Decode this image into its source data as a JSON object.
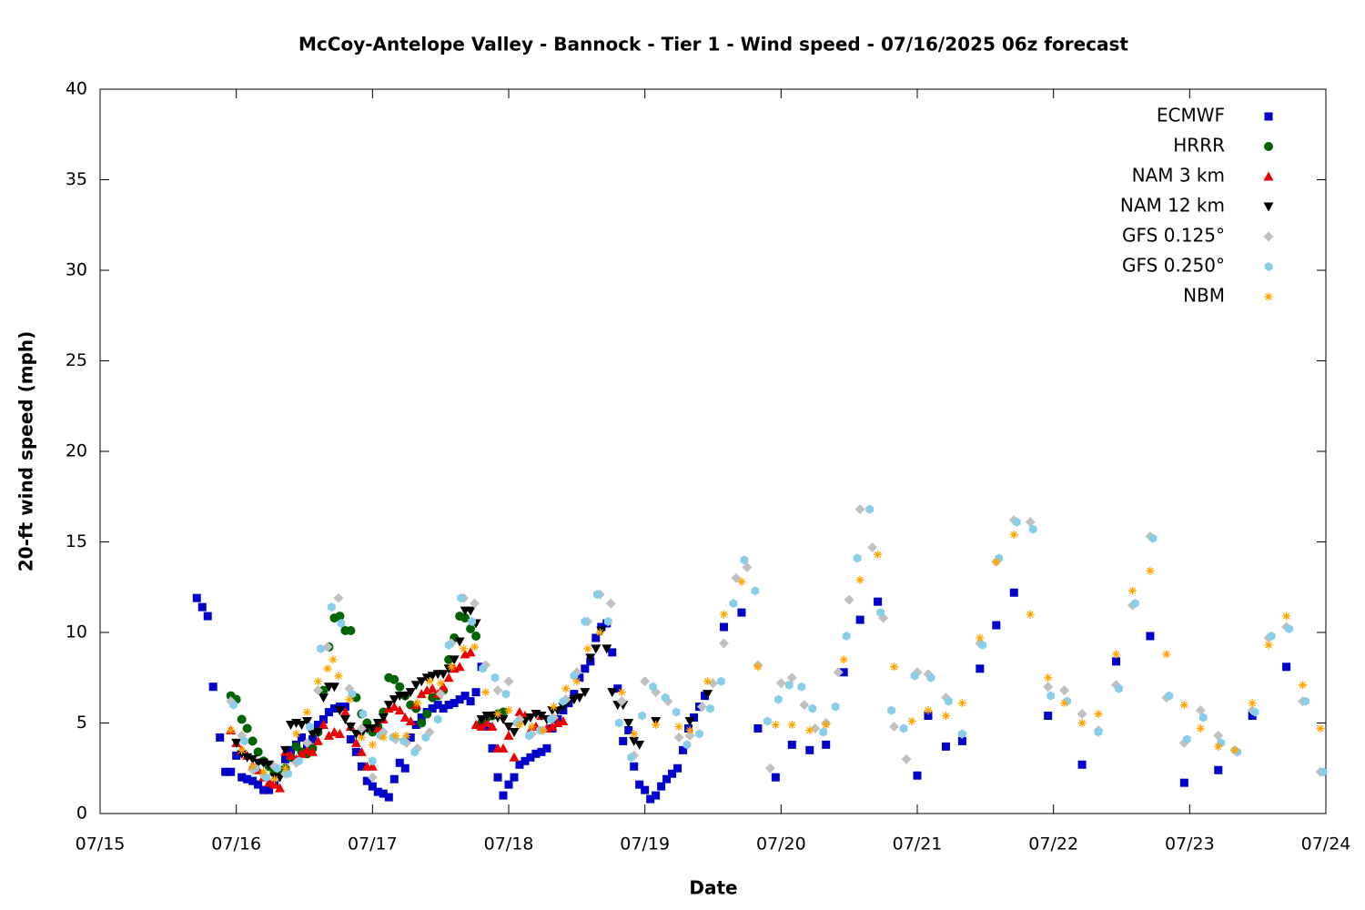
{
  "chart_data": {
    "type": "scatter",
    "title": "McCoy-Antelope Valley - Bannock - Tier 1 - Wind speed - 07/16/2025 06z forecast",
    "x_label": "Date",
    "y_label": "20-ft wind speed (mph)",
    "xlim": [
      0,
      9
    ],
    "ylim": [
      0,
      40
    ],
    "xticks": [
      {
        "value": 0,
        "label": "07/15"
      },
      {
        "value": 1,
        "label": "07/16"
      },
      {
        "value": 2,
        "label": "07/17"
      },
      {
        "value": 3,
        "label": "07/18"
      },
      {
        "value": 4,
        "label": "07/19"
      },
      {
        "value": 5,
        "label": "07/20"
      },
      {
        "value": 6,
        "label": "07/21"
      },
      {
        "value": 7,
        "label": "07/22"
      },
      {
        "value": 8,
        "label": "07/23"
      },
      {
        "value": 9,
        "label": "07/24"
      }
    ],
    "yticks": [
      0,
      5,
      10,
      15,
      20,
      25,
      30,
      35,
      40
    ],
    "grid": false,
    "legend": "top-right",
    "series": [
      {
        "name": "ECMWF",
        "color": "#0000cc",
        "marker": "square",
        "x": [
          0.71,
          0.75,
          0.79,
          0.83,
          0.88,
          0.92,
          0.96,
          1.0,
          1.04,
          1.08,
          1.12,
          1.16,
          1.2,
          1.24,
          1.28,
          1.32,
          1.36,
          1.4,
          1.44,
          1.48,
          1.52,
          1.56,
          1.6,
          1.64,
          1.68,
          1.72,
          1.76,
          1.8,
          1.84,
          1.88,
          1.92,
          1.96,
          2.0,
          2.04,
          2.08,
          2.12,
          2.16,
          2.2,
          2.24,
          2.28,
          2.32,
          2.36,
          2.4,
          2.44,
          2.48,
          2.52,
          2.56,
          2.6,
          2.64,
          2.68,
          2.72,
          2.76,
          2.8,
          2.84,
          2.88,
          2.92,
          2.96,
          3.0,
          3.04,
          3.08,
          3.12,
          3.16,
          3.2,
          3.24,
          3.28,
          3.32,
          3.36,
          3.4,
          3.44,
          3.48,
          3.52,
          3.56,
          3.6,
          3.64,
          3.68,
          3.72,
          3.76,
          3.8,
          3.84,
          3.88,
          3.92,
          3.96,
          4.0,
          4.04,
          4.08,
          4.12,
          4.16,
          4.2,
          4.24,
          4.28,
          4.32,
          4.36,
          4.4,
          4.44,
          4.58,
          4.71,
          4.83,
          4.96,
          5.08,
          5.21,
          5.33,
          5.46,
          5.58,
          5.71,
          6.0,
          6.08,
          6.21,
          6.33,
          6.46,
          6.58,
          6.71,
          6.96,
          7.21,
          7.46,
          7.71,
          7.96,
          8.21,
          8.46,
          8.71
        ],
        "values": [
          11.9,
          11.4,
          10.9,
          7.0,
          4.2,
          2.3,
          2.3,
          3.2,
          2.0,
          1.9,
          1.8,
          1.6,
          1.3,
          1.3,
          1.6,
          2.3,
          3.0,
          3.5,
          3.8,
          4.2,
          3.7,
          4.1,
          4.9,
          5.2,
          5.6,
          5.8,
          5.9,
          5.9,
          4.1,
          3.4,
          2.6,
          1.8,
          1.5,
          1.2,
          1.1,
          0.9,
          1.9,
          2.8,
          2.5,
          4.2,
          4.9,
          5.3,
          5.6,
          5.8,
          6.0,
          5.8,
          6.0,
          6.1,
          6.3,
          6.5,
          6.2,
          6.7,
          8.1,
          4.8,
          3.6,
          2.0,
          1.0,
          1.6,
          2.0,
          2.7,
          2.9,
          3.1,
          3.3,
          3.4,
          3.6,
          4.7,
          5.2,
          5.7,
          6.1,
          6.6,
          7.5,
          8.0,
          8.4,
          9.7,
          10.3,
          10.5,
          8.9,
          6.9,
          4.0,
          4.6,
          2.6,
          1.6,
          1.3,
          0.8,
          1.0,
          1.5,
          1.9,
          2.2,
          2.5,
          3.5,
          4.7,
          5.3,
          5.9,
          6.5,
          10.3,
          11.1,
          4.7,
          2.0,
          3.8,
          3.5,
          3.8,
          7.8,
          10.7,
          11.7,
          2.1,
          5.4,
          3.7,
          4.0,
          8.0,
          10.4,
          12.2,
          5.4,
          2.7,
          8.4,
          9.8,
          1.7,
          2.4,
          5.4,
          8.1
        ]
      },
      {
        "name": "HRRR",
        "color": "#006400",
        "marker": "circle",
        "x": [
          0.96,
          1.0,
          1.04,
          1.08,
          1.12,
          1.16,
          1.2,
          1.24,
          1.28,
          1.32,
          1.36,
          1.4,
          1.44,
          1.48,
          1.52,
          1.56,
          1.6,
          1.64,
          1.68,
          1.72,
          1.76,
          1.8,
          1.84,
          1.88,
          1.92,
          1.96,
          2.0,
          2.04,
          2.08,
          2.12,
          2.16,
          2.2,
          2.24,
          2.28,
          2.32,
          2.36,
          2.4,
          2.44,
          2.48,
          2.52,
          2.56,
          2.6,
          2.64,
          2.68,
          2.72,
          2.76,
          2.8,
          2.84,
          2.88,
          2.92,
          2.96
        ],
        "values": [
          6.5,
          6.3,
          5.2,
          4.7,
          4.0,
          3.4,
          2.9,
          2.6,
          2.3,
          2.2,
          2.5,
          3.1,
          3.7,
          3.4,
          3.3,
          3.6,
          4.5,
          6.8,
          9.2,
          10.8,
          10.9,
          10.1,
          10.1,
          6.4,
          5.5,
          5.0,
          4.5,
          4.8,
          5.6,
          7.5,
          7.4,
          7.0,
          6.5,
          6.0,
          5.8,
          5.0,
          5.5,
          6.4,
          6.5,
          6.8,
          8.5,
          9.7,
          10.9,
          10.8,
          10.2,
          9.8,
          5.0,
          5.3,
          5.4,
          5.5,
          5.6
        ]
      },
      {
        "name": "NAM 3 km",
        "color": "#ee0000",
        "marker": "triangle",
        "x": [
          0.96,
          1.0,
          1.04,
          1.08,
          1.12,
          1.16,
          1.2,
          1.24,
          1.28,
          1.32,
          1.36,
          1.4,
          1.44,
          1.48,
          1.52,
          1.56,
          1.6,
          1.64,
          1.68,
          1.72,
          1.76,
          1.8,
          1.84,
          1.88,
          1.92,
          1.96,
          2.0,
          2.04,
          2.08,
          2.12,
          2.16,
          2.2,
          2.24,
          2.28,
          2.32,
          2.36,
          2.4,
          2.44,
          2.48,
          2.52,
          2.56,
          2.6,
          2.64,
          2.68,
          2.72,
          2.76,
          2.8,
          2.84,
          2.88,
          2.92,
          2.96,
          3.0,
          3.04,
          3.08,
          3.12,
          3.16,
          3.2,
          3.24,
          3.28,
          3.32,
          3.36,
          3.4
        ],
        "values": [
          4.6,
          3.9,
          3.5,
          3.2,
          2.6,
          2.4,
          2.0,
          1.7,
          1.6,
          1.4,
          3.4,
          3.2,
          3.0,
          3.3,
          3.5,
          3.4,
          4.0,
          4.9,
          4.3,
          4.5,
          4.4,
          5.6,
          4.8,
          3.9,
          3.4,
          2.6,
          2.6,
          4.7,
          5.2,
          5.8,
          5.9,
          5.7,
          5.3,
          5.1,
          6.0,
          6.6,
          6.8,
          6.9,
          6.6,
          7.0,
          7.5,
          8.0,
          8.1,
          8.8,
          8.9,
          4.9,
          4.8,
          5.0,
          4.8,
          3.6,
          3.6,
          4.3,
          3.1,
          5.6,
          5.4,
          4.6,
          4.8,
          5.4,
          4.7,
          4.8,
          5.0,
          5.1
        ]
      },
      {
        "name": "NAM 12 km",
        "color": "#000000",
        "marker": "triangle-down",
        "x": [
          1.0,
          1.04,
          1.08,
          1.12,
          1.16,
          1.2,
          1.24,
          1.28,
          1.32,
          1.36,
          1.4,
          1.44,
          1.48,
          1.52,
          1.56,
          1.6,
          1.64,
          1.68,
          1.72,
          1.76,
          1.8,
          1.84,
          1.88,
          1.92,
          1.96,
          2.0,
          2.04,
          2.08,
          2.12,
          2.16,
          2.2,
          2.24,
          2.28,
          2.32,
          2.36,
          2.4,
          2.44,
          2.48,
          2.52,
          2.56,
          2.6,
          2.64,
          2.68,
          2.72,
          2.76,
          2.8,
          2.84,
          2.88,
          2.92,
          2.96,
          3.0,
          3.04,
          3.08,
          3.12,
          3.16,
          3.2,
          3.24,
          3.28,
          3.32,
          3.36,
          3.4,
          3.44,
          3.48,
          3.52,
          3.56,
          3.6,
          3.64,
          3.68,
          3.72,
          3.76,
          3.8,
          3.84,
          3.88,
          3.92,
          3.96,
          4.08,
          4.33,
          4.46
        ],
        "values": [
          3.9,
          3.3,
          3.1,
          3.0,
          2.8,
          2.8,
          2.7,
          2.0,
          2.0,
          3.5,
          4.9,
          5.0,
          4.9,
          5.1,
          4.4,
          4.5,
          6.4,
          7.0,
          7.0,
          5.7,
          5.2,
          4.8,
          4.4,
          4.4,
          4.7,
          4.7,
          5.0,
          5.3,
          6.0,
          6.3,
          6.5,
          6.5,
          6.7,
          7.1,
          7.3,
          7.5,
          7.6,
          7.7,
          7.7,
          8.0,
          8.5,
          9.5,
          11.2,
          11.2,
          10.5,
          5.2,
          5.4,
          5.4,
          5.3,
          5.2,
          4.8,
          4.5,
          5.0,
          5.1,
          5.3,
          5.5,
          5.4,
          5.2,
          5.7,
          5.7,
          5.9,
          6.2,
          6.3,
          6.4,
          6.7,
          8.6,
          9.1,
          10.1,
          9.1,
          6.7,
          6.0,
          6.0,
          5.0,
          4.0,
          3.8,
          5.1,
          5.1,
          6.6
        ]
      },
      {
        "name": "GFS 0.125°",
        "color": "#c0c0c0",
        "marker": "diamond",
        "x": [
          0.96,
          1.04,
          1.12,
          1.2,
          1.28,
          1.36,
          1.44,
          1.52,
          1.6,
          1.67,
          1.75,
          1.83,
          1.92,
          2.0,
          2.08,
          2.17,
          2.25,
          2.33,
          2.42,
          2.5,
          2.58,
          2.67,
          2.75,
          2.83,
          2.92,
          3.0,
          3.08,
          3.17,
          3.25,
          3.33,
          3.42,
          3.5,
          3.58,
          3.67,
          3.75,
          3.83,
          3.92,
          4.0,
          4.08,
          4.17,
          4.25,
          4.33,
          4.42,
          4.5,
          4.58,
          4.67,
          4.75,
          4.83,
          4.92,
          5.0,
          5.08,
          5.17,
          5.25,
          5.33,
          5.42,
          5.5,
          5.58,
          5.67,
          5.75,
          5.83,
          5.92,
          6.0,
          6.08,
          6.21,
          6.33,
          6.46,
          6.58,
          6.71,
          6.83,
          6.96,
          7.08,
          7.21,
          7.33,
          7.46,
          7.58,
          7.71,
          7.83,
          7.96,
          8.08,
          8.21,
          8.33,
          8.46,
          8.58,
          8.71,
          8.83,
          8.96
        ],
        "values": [
          6.2,
          4.3,
          2.4,
          2.1,
          2.6,
          2.2,
          2.8,
          3.9,
          6.8,
          9.2,
          11.9,
          6.9,
          4.7,
          2.0,
          4.5,
          4.1,
          3.9,
          3.6,
          4.5,
          6.6,
          9.4,
          11.9,
          11.6,
          8.2,
          6.8,
          7.3,
          5.2,
          4.4,
          4.6,
          5.3,
          6.3,
          7.8,
          10.6,
          12.1,
          11.6,
          6.2,
          3.2,
          7.3,
          6.7,
          6.2,
          4.2,
          4.3,
          5.9,
          7.2,
          9.4,
          13.0,
          13.6,
          8.2,
          2.5,
          7.2,
          7.5,
          6.0,
          4.7,
          5.0,
          7.8,
          11.8,
          16.8,
          14.7,
          10.8,
          4.8,
          3.0,
          7.8,
          7.7,
          6.4,
          4.4,
          9.4,
          13.9,
          16.2,
          16.1,
          7.0,
          6.8,
          5.5,
          4.6,
          7.1,
          11.5,
          15.3,
          6.4,
          3.9,
          5.7,
          4.3,
          3.5,
          5.7,
          9.7,
          10.3,
          6.2,
          2.3
        ]
      },
      {
        "name": "GFS 0.250°",
        "color": "#87ceeb",
        "marker": "hexagon",
        "x": [
          0.98,
          1.06,
          1.14,
          1.22,
          1.3,
          1.38,
          1.46,
          1.54,
          1.62,
          1.7,
          1.77,
          1.85,
          1.93,
          2.0,
          2.06,
          2.15,
          2.23,
          2.31,
          2.39,
          2.48,
          2.56,
          2.65,
          2.73,
          2.81,
          2.9,
          2.98,
          3.06,
          3.15,
          3.23,
          3.31,
          3.4,
          3.48,
          3.56,
          3.65,
          3.73,
          3.81,
          3.9,
          3.98,
          4.06,
          4.15,
          4.23,
          4.31,
          4.4,
          4.48,
          4.56,
          4.65,
          4.73,
          4.81,
          4.9,
          4.98,
          5.06,
          5.15,
          5.23,
          5.31,
          5.4,
          5.48,
          5.56,
          5.65,
          5.73,
          5.81,
          5.9,
          5.98,
          6.1,
          6.23,
          6.33,
          6.48,
          6.6,
          6.73,
          6.85,
          6.98,
          7.1,
          7.33,
          7.48,
          7.6,
          7.73,
          7.85,
          7.98,
          8.1,
          8.23,
          8.35,
          8.48,
          8.6,
          8.73,
          8.85,
          8.98
        ],
        "values": [
          6.0,
          4.0,
          2.5,
          2.0,
          2.5,
          2.2,
          2.9,
          4.8,
          9.1,
          11.4,
          10.5,
          6.6,
          5.5,
          2.9,
          4.3,
          4.2,
          4.0,
          3.4,
          4.2,
          5.2,
          9.3,
          11.9,
          10.6,
          8.0,
          7.5,
          6.6,
          5.0,
          4.3,
          4.6,
          5.2,
          6.2,
          7.6,
          10.6,
          12.1,
          10.6,
          5.0,
          3.1,
          5.4,
          7.0,
          6.4,
          5.6,
          3.8,
          4.4,
          5.8,
          7.3,
          11.6,
          14.0,
          12.3,
          5.1,
          6.3,
          7.1,
          7.0,
          5.8,
          4.5,
          5.9,
          9.8,
          14.1,
          16.8,
          11.1,
          5.7,
          4.7,
          7.6,
          7.5,
          6.2,
          4.4,
          9.3,
          14.1,
          16.1,
          15.7,
          6.5,
          6.2,
          4.5,
          6.9,
          11.6,
          15.2,
          6.5,
          4.1,
          5.3,
          3.9,
          3.4,
          5.6,
          9.8,
          10.2,
          6.2,
          2.3
        ]
      },
      {
        "name": "NBM",
        "color": "#ffa500",
        "marker": "star",
        "x": [
          0.96,
          1.04,
          1.12,
          1.2,
          1.28,
          1.36,
          1.44,
          1.52,
          1.6,
          1.67,
          1.71,
          1.75,
          1.83,
          1.92,
          2.0,
          2.08,
          2.17,
          2.25,
          2.33,
          2.42,
          2.5,
          2.58,
          2.67,
          2.75,
          2.83,
          2.92,
          3.0,
          3.08,
          3.17,
          3.25,
          3.33,
          3.42,
          3.5,
          3.58,
          3.67,
          3.83,
          3.92,
          4.08,
          4.25,
          4.33,
          4.46,
          4.58,
          4.71,
          4.83,
          4.96,
          5.08,
          5.21,
          5.33,
          5.46,
          5.58,
          5.71,
          5.83,
          5.96,
          6.08,
          6.21,
          6.33,
          6.46,
          6.58,
          6.71,
          6.83,
          6.96,
          7.08,
          7.21,
          7.33,
          7.46,
          7.58,
          7.71,
          7.83,
          7.96,
          8.08,
          8.21,
          8.33,
          8.46,
          8.58,
          8.71,
          8.83,
          8.96
        ],
        "values": [
          4.6,
          3.5,
          2.6,
          2.3,
          1.9,
          2.5,
          4.4,
          5.6,
          7.3,
          8.0,
          8.5,
          7.6,
          6.3,
          4.2,
          3.8,
          4.2,
          4.3,
          4.3,
          6.1,
          7.3,
          7.2,
          8.1,
          9.1,
          9.2,
          6.7,
          5.5,
          5.7,
          4.9,
          4.8,
          4.6,
          5.9,
          6.9,
          7.3,
          9.1,
          10.0,
          6.7,
          4.4,
          4.9,
          4.8,
          4.6,
          7.3,
          11.0,
          12.8,
          8.1,
          4.9,
          4.9,
          4.6,
          4.9,
          8.5,
          12.9,
          14.3,
          8.1,
          5.1,
          5.7,
          5.4,
          6.1,
          9.7,
          13.9,
          15.4,
          11.0,
          7.5,
          6.1,
          5.0,
          5.5,
          8.8,
          12.3,
          13.4,
          8.8,
          6.0,
          4.7,
          3.7,
          3.5,
          6.1,
          9.3,
          10.9,
          7.1,
          4.7
        ]
      }
    ]
  }
}
